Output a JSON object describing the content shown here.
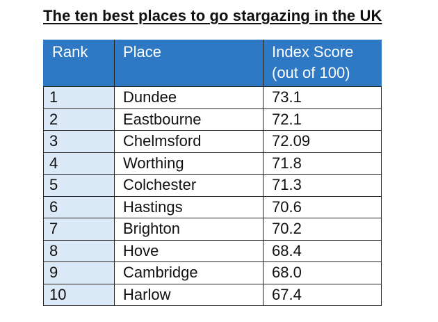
{
  "title": "The ten best places to go stargazing in the UK",
  "table": {
    "headers": {
      "rank": "Rank",
      "place": "Place",
      "score_line1": "Index Score",
      "score_line2": "(out of 100)"
    },
    "rows": [
      {
        "rank": "1",
        "place": "Dundee",
        "score": "73.1"
      },
      {
        "rank": "2",
        "place": "Eastbourne",
        "score": "72.1"
      },
      {
        "rank": "3",
        "place": "Chelmsford",
        "score": "72.09"
      },
      {
        "rank": "4",
        "place": "Worthing",
        "score": "71.8"
      },
      {
        "rank": "5",
        "place": "Colchester",
        "score": "71.3"
      },
      {
        "rank": "6",
        "place": "Hastings",
        "score": "70.6"
      },
      {
        "rank": "7",
        "place": "Brighton",
        "score": "70.2"
      },
      {
        "rank": "8",
        "place": "Hove",
        "score": "68.4"
      },
      {
        "rank": "9",
        "place": "Cambridge",
        "score": "68.0"
      },
      {
        "rank": "10",
        "place": "Harlow",
        "score": "67.4"
      }
    ]
  },
  "colors": {
    "header_bg": "#2f78c4",
    "header_text": "#ffffff",
    "rank_cell_bg": "#dce9f7"
  }
}
